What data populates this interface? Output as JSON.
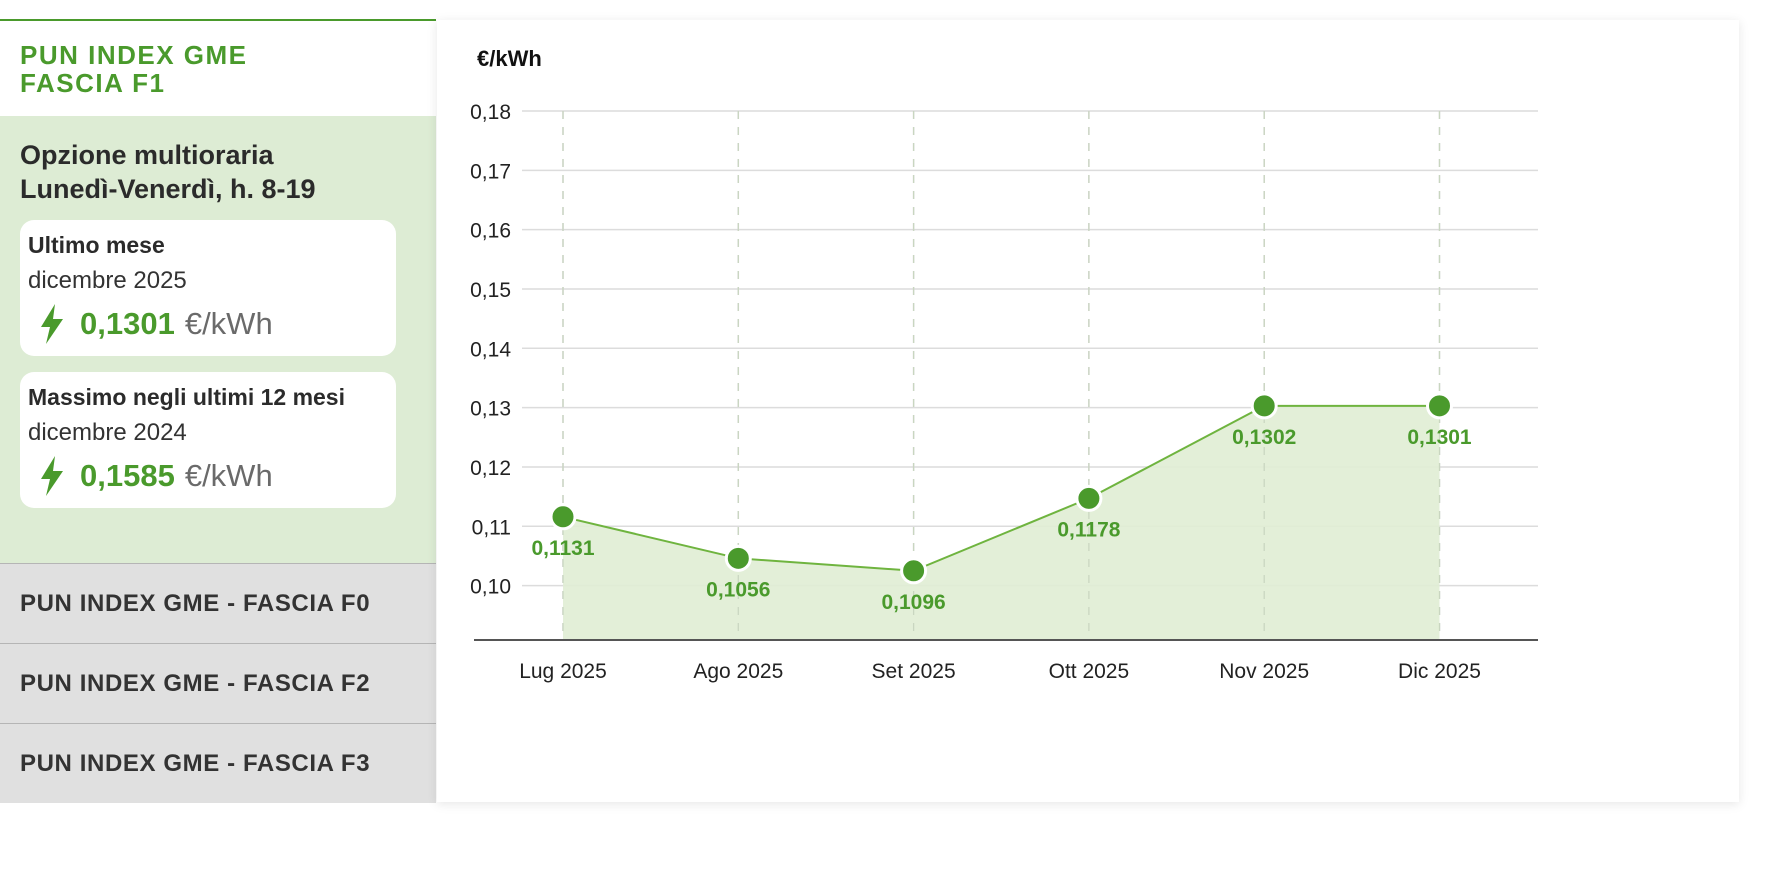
{
  "sidebar": {
    "active_title_line1": "PUN INDEX GME",
    "active_title_line2": "FASCIA F1",
    "option_line1": "Opzione multioraria",
    "option_line2": "Lunedì-Venerdì, h. 8-19",
    "card_last": {
      "label": "Ultimo mese",
      "date": "dicembre 2025",
      "value": "0,1301",
      "unit": "€/kWh",
      "icon": "lightning-bolt-icon"
    },
    "card_max": {
      "label": "Massimo negli ultimi 12 mesi",
      "date": "dicembre 2024",
      "value": "0,1585",
      "unit": "€/kWh",
      "icon": "lightning-bolt-icon"
    },
    "tabs": [
      {
        "label": "PUN INDEX GME - FASCIA F0"
      },
      {
        "label": "PUN INDEX GME - FASCIA F2"
      },
      {
        "label": "PUN INDEX GME - FASCIA F3"
      }
    ]
  },
  "colors": {
    "accent": "#4a9a2c",
    "area_fill": "#e0edd4",
    "panel_bg": "#ddecd4",
    "tab_bg": "#e0e0e0"
  },
  "chart_data": {
    "type": "area",
    "ylabel": "€/kWh",
    "categories": [
      "Lug 2025",
      "Ago 2025",
      "Set 2025",
      "Ott 2025",
      "Nov 2025",
      "Dic 2025"
    ],
    "values": [
      0.1131,
      0.1056,
      0.1096,
      0.1178,
      0.1302,
      0.1301
    ],
    "point_positions": [
      0.1116,
      0.1046,
      0.1025,
      0.1147,
      0.1303,
      0.1303
    ],
    "data_labels": [
      "0,1131",
      "0,1056",
      "0,1096",
      "0,1178",
      "0,1302",
      "0,1301"
    ],
    "y_ticks": [
      "0,10",
      "0,11",
      "0,12",
      "0,13",
      "0,14",
      "0,15",
      "0,16",
      "0,17",
      "0,18"
    ],
    "y_tick_values": [
      0.1,
      0.11,
      0.12,
      0.13,
      0.14,
      0.15,
      0.16,
      0.17,
      0.18
    ],
    "ylim": [
      0.091,
      0.18
    ],
    "grid": true,
    "legend": "none"
  }
}
